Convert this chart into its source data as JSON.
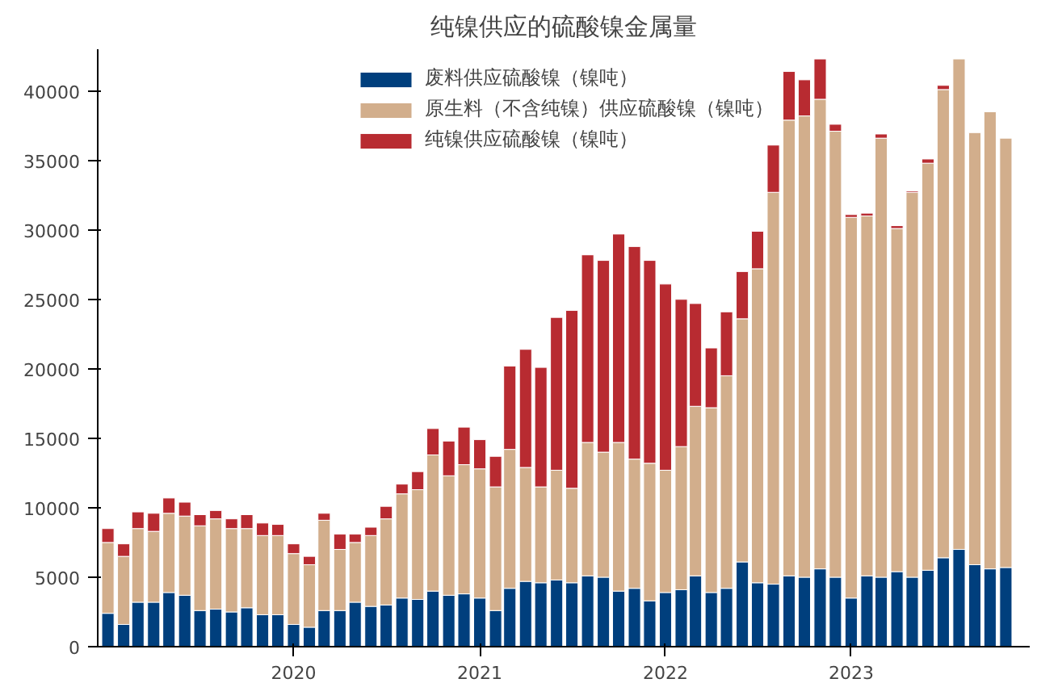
{
  "chart_data": {
    "type": "bar",
    "stacked": true,
    "title": "纯镍供应的硫酸镍金属量",
    "x": [
      "2019-01",
      "2019-02",
      "2019-03",
      "2019-04",
      "2019-05",
      "2019-06",
      "2019-07",
      "2019-08",
      "2019-09",
      "2019-10",
      "2019-11",
      "2019-12",
      "2020-01",
      "2020-02",
      "2020-03",
      "2020-04",
      "2020-05",
      "2020-06",
      "2020-07",
      "2020-08",
      "2020-09",
      "2020-10",
      "2020-11",
      "2020-12",
      "2021-01",
      "2021-02",
      "2021-03",
      "2021-04",
      "2021-05",
      "2021-06",
      "2021-07",
      "2021-08",
      "2021-09",
      "2021-10",
      "2021-11",
      "2021-12",
      "2022-01",
      "2022-02",
      "2022-03",
      "2022-04",
      "2022-05",
      "2022-06",
      "2022-07",
      "2022-08",
      "2022-09",
      "2022-10",
      "2022-11",
      "2022-12",
      "2023-01",
      "2023-02",
      "2023-03",
      "2023-04",
      "2023-05",
      "2023-06",
      "2023-07",
      "2023-08",
      "2023-09",
      "2023-10",
      "2023-11"
    ],
    "series": [
      {
        "name": "废料供应硫酸镍（镍吨）",
        "color": "#003f7d",
        "values": [
          2400,
          1600,
          3200,
          3200,
          3900,
          3700,
          2600,
          2700,
          2500,
          2800,
          2300,
          2300,
          1600,
          1400,
          2600,
          2600,
          3200,
          2900,
          3000,
          3500,
          3400,
          4000,
          3700,
          3800,
          3500,
          2600,
          4200,
          4700,
          4600,
          4800,
          4600,
          5100,
          5000,
          4000,
          4200,
          3300,
          3900,
          4100,
          5100,
          3900,
          4200,
          6100,
          4600,
          4500,
          5100,
          5000,
          5600,
          5000,
          3500,
          5100,
          5000,
          5400,
          5000,
          5500,
          6400,
          7000,
          5900,
          5600,
          5700
        ]
      },
      {
        "name": "原生料（不含纯镍）供应硫酸镍（镍吨）",
        "color": "#d2ae8c",
        "values": [
          5100,
          4900,
          5300,
          5100,
          5700,
          5700,
          6100,
          6500,
          6000,
          5700,
          5700,
          5700,
          5100,
          4500,
          6500,
          4400,
          4300,
          5100,
          6200,
          7500,
          7900,
          9800,
          8600,
          9300,
          9300,
          8900,
          10000,
          8200,
          6900,
          7900,
          6800,
          9600,
          9000,
          10700,
          9300,
          9900,
          8800,
          10300,
          12200,
          13300,
          15300,
          17500,
          22600,
          28200,
          32800,
          33200,
          33800,
          32100,
          27400,
          25900,
          31600,
          24700,
          27700,
          29300,
          33700,
          35300,
          31100,
          32900,
          30900
        ]
      },
      {
        "name": "纯镍供应硫酸镍（镍吨）",
        "color": "#b82b31",
        "values": [
          1000,
          900,
          1200,
          1300,
          1100,
          1000,
          800,
          600,
          700,
          1000,
          900,
          800,
          700,
          600,
          500,
          1100,
          600,
          600,
          900,
          700,
          1300,
          1900,
          2500,
          2700,
          2100,
          2200,
          6000,
          8500,
          8600,
          11000,
          12800,
          13500,
          13800,
          15000,
          15300,
          14600,
          13400,
          10600,
          7400,
          4300,
          4600,
          3400,
          2700,
          3400,
          3500,
          2600,
          2900,
          500,
          200,
          200,
          300,
          200,
          100,
          300,
          300,
          null,
          null,
          null,
          null
        ]
      }
    ],
    "xlim": [
      "2018-12-12",
      "2023-12-18"
    ],
    "xticks": [
      {
        "value": "2020-01-01",
        "label": "2020"
      },
      {
        "value": "2021-01-01",
        "label": "2021"
      },
      {
        "value": "2022-01-01",
        "label": "2022"
      },
      {
        "value": "2023-01-01",
        "label": "2023"
      }
    ],
    "ylim": [
      0,
      43000
    ],
    "yticks": [
      0,
      5000,
      10000,
      15000,
      20000,
      25000,
      30000,
      35000,
      40000
    ],
    "grid": false,
    "legend": "top"
  }
}
